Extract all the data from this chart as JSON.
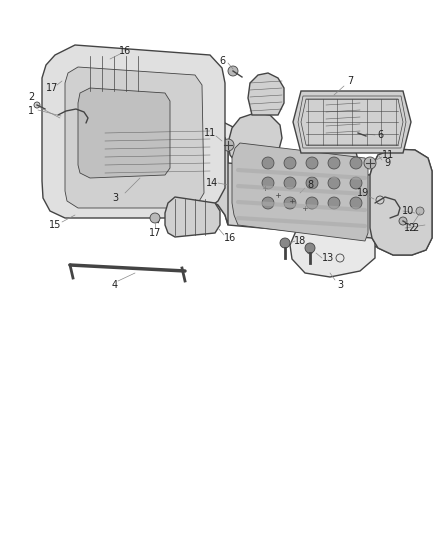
{
  "background_color": "#ffffff",
  "line_color": "#444444",
  "label_color": "#222222",
  "label_fontsize": 7,
  "figsize": [
    4.38,
    5.33
  ],
  "dpi": 100
}
